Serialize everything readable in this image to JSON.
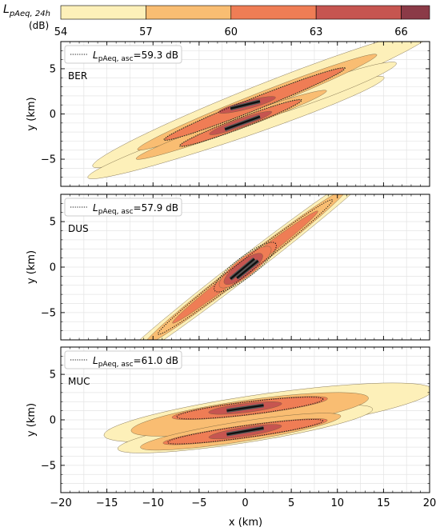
{
  "colorbar": {
    "label_main": "L",
    "label_sub": "pAeq, 24h",
    "label_unit": "(dB)",
    "ticks": [
      "54",
      "57",
      "60",
      "63",
      "66"
    ],
    "levels": [
      54,
      57,
      60,
      63,
      66,
      67
    ],
    "colors": [
      "#fdf0b9",
      "#f9bd72",
      "#ef7d55",
      "#c65550",
      "#8b3a47"
    ]
  },
  "chart_data": [
    {
      "type": "contour",
      "panel_label": "BER",
      "legend": {
        "symbol": "L",
        "sub": "pAeq, asc",
        "value": "=59.3 dB"
      },
      "xlim": [
        -20,
        20
      ],
      "ylim": [
        -8,
        8
      ],
      "xticks": [
        "−20",
        "−15",
        "−10",
        "−5",
        "0",
        "5",
        "10",
        "15",
        "20"
      ],
      "yticks": [
        "5",
        "0",
        "−5"
      ],
      "ylabel": "y (km)",
      "xlabel": "x (km)",
      "runways": [
        {
          "x1": -1.6,
          "y1": 0.6,
          "x2": 1.6,
          "y2": 1.4
        },
        {
          "x1": -2.2,
          "y1": -1.7,
          "x2": 1.6,
          "y2": -0.3
        }
      ],
      "contours": [
        {
          "level": 54,
          "shapes": [
            {
              "cx": 2,
              "cy": 1.7,
              "rx": 20,
              "ry": 1.6,
              "angle": 22
            },
            {
              "cx": -1,
              "cy": -1.5,
              "rx": 17,
              "ry": 1.3,
              "angle": 19
            },
            {
              "cx": 7,
              "cy": 2.2,
              "rx": 10,
              "ry": 1.0,
              "angle": 20
            }
          ]
        },
        {
          "level": 57,
          "shapes": [
            {
              "cx": 1.3,
              "cy": 1.3,
              "rx": 14,
              "ry": 0.9,
              "angle": 22
            },
            {
              "cx": -1.5,
              "cy": -1.2,
              "rx": 11,
              "ry": 0.75,
              "angle": 20
            }
          ]
        },
        {
          "level": 60,
          "shapes": [
            {
              "cx": 1,
              "cy": 1.1,
              "rx": 10.5,
              "ry": 0.65,
              "angle": 22
            },
            {
              "cx": -0.5,
              "cy": -1.0,
              "rx": 7,
              "ry": 0.55,
              "angle": 21
            }
          ]
        },
        {
          "level": 63,
          "shapes": [
            {
              "cx": 0.2,
              "cy": 1.0,
              "rx": 3.2,
              "ry": 0.45,
              "angle": 15
            },
            {
              "cx": -0.5,
              "cy": -1.0,
              "rx": 3.6,
              "ry": 0.45,
              "angle": 20
            }
          ]
        }
      ],
      "asc": [
        {
          "cx": 1,
          "cy": 1.1,
          "rx": 10.6,
          "ry": 0.68,
          "angle": 22
        },
        {
          "cx": -0.5,
          "cy": -1.0,
          "rx": 7.1,
          "ry": 0.58,
          "angle": 21
        }
      ]
    },
    {
      "type": "contour",
      "panel_label": "DUS",
      "legend": {
        "symbol": "L",
        "sub": "pAeq, asc",
        "value": "=57.9 dB"
      },
      "xlim": [
        -20,
        20
      ],
      "ylim": [
        -8,
        8
      ],
      "xticks": [
        "−20",
        "−15",
        "−10",
        "−5",
        "0",
        "5",
        "10",
        "15",
        "20"
      ],
      "yticks": [
        "5",
        "0",
        "−5"
      ],
      "ylabel": "y (km)",
      "xlabel": "x (km)",
      "runways": [
        {
          "x1": -1.6,
          "y1": -1.3,
          "x2": 1.0,
          "y2": 0.9
        },
        {
          "x1": -0.9,
          "y1": -1.2,
          "x2": 1.4,
          "y2": 0.7
        }
      ],
      "contours": [
        {
          "level": 54,
          "shapes": [
            {
              "cx": 0,
              "cy": 0,
              "rx": 19,
              "ry": 1.1,
              "angle": 38
            }
          ]
        },
        {
          "level": 57,
          "shapes": [
            {
              "cx": 0,
              "cy": 0,
              "rx": 14,
              "ry": 0.85,
              "angle": 38
            }
          ]
        },
        {
          "level": 60,
          "shapes": [
            {
              "cx": 0,
              "cy": 0,
              "rx": 10,
              "ry": 0.6,
              "angle": 38
            },
            {
              "cx": 0,
              "cy": 0,
              "rx": 3.5,
              "ry": 1.0,
              "angle": 38
            }
          ]
        },
        {
          "level": 63,
          "shapes": [
            {
              "cx": -0.2,
              "cy": -0.2,
              "rx": 2.6,
              "ry": 0.8,
              "angle": 38
            }
          ]
        }
      ],
      "asc": [
        {
          "cx": 0,
          "cy": 0,
          "rx": 12,
          "ry": 0.75,
          "angle": 38
        },
        {
          "cx": 0,
          "cy": 0,
          "rx": 4.2,
          "ry": 1.1,
          "angle": 38
        }
      ]
    },
    {
      "type": "contour",
      "panel_label": "MUC",
      "legend": {
        "symbol": "L",
        "sub": "pAeq, asc",
        "value": "=61.0 dB"
      },
      "xlim": [
        -20,
        20
      ],
      "ylim": [
        -8,
        8
      ],
      "xticks": [
        "−20",
        "−15",
        "−10",
        "−5",
        "0",
        "5",
        "10",
        "15",
        "20"
      ],
      "yticks": [
        "5",
        "0",
        "−5"
      ],
      "ylabel": "y (km)",
      "xlabel": "x (km)",
      "runways": [
        {
          "x1": -2.0,
          "y1": 1.0,
          "x2": 2.0,
          "y2": 1.6
        },
        {
          "x1": -2.0,
          "y1": -1.6,
          "x2": 2.0,
          "y2": -0.9
        }
      ],
      "contours": [
        {
          "level": 54,
          "shapes": [
            {
              "cx": 2.5,
              "cy": 0.8,
              "rx": 18,
              "ry": 2.1,
              "angle": 8
            },
            {
              "cx": 0,
              "cy": -1.0,
              "rx": 14,
              "ry": 1.5,
              "angle": 9
            }
          ]
        },
        {
          "level": 57,
          "shapes": [
            {
              "cx": 0.5,
              "cy": 0.6,
              "rx": 13,
              "ry": 1.6,
              "angle": 8
            },
            {
              "cx": -0.5,
              "cy": -1.3,
              "rx": 11,
              "ry": 1.1,
              "angle": 9
            }
          ]
        },
        {
          "level": 60,
          "shapes": [
            {
              "cx": 0.5,
              "cy": 1.3,
              "rx": 8.5,
              "ry": 0.75,
              "angle": 7
            },
            {
              "cx": 0,
              "cy": -1.3,
              "rx": 9,
              "ry": 0.7,
              "angle": 8
            }
          ]
        },
        {
          "level": 63,
          "shapes": [
            {
              "cx": 0,
              "cy": 1.3,
              "rx": 4,
              "ry": 0.5,
              "angle": 7
            },
            {
              "cx": 0,
              "cy": -1.3,
              "rx": 4,
              "ry": 0.5,
              "angle": 9
            }
          ]
        }
      ],
      "asc": [
        {
          "cx": 0.5,
          "cy": 1.3,
          "rx": 8.0,
          "ry": 0.7,
          "angle": 7
        },
        {
          "cx": 0,
          "cy": -1.3,
          "rx": 8.5,
          "ry": 0.65,
          "angle": 8
        }
      ]
    }
  ]
}
